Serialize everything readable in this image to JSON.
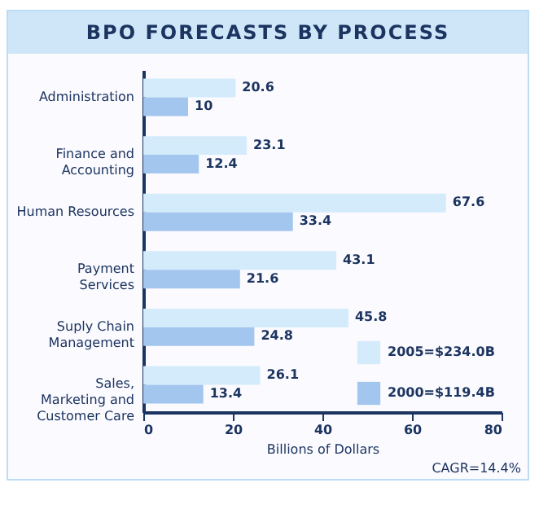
{
  "chart_data": {
    "type": "bar",
    "orientation": "horizontal",
    "title": "BPO FORECASTS BY PROCESS",
    "categories": [
      "Administration",
      "Finance and Accounting",
      "Human Resources",
      "Payment Services",
      "Suply Chain Management",
      "Sales, Marketing and Customer Care"
    ],
    "series": [
      {
        "name": "2005=$234.0B",
        "color": "#d4ebfc",
        "values": [
          20.6,
          23.1,
          67.6,
          43.1,
          45.8,
          26.1
        ]
      },
      {
        "name": "2000=$119.4B",
        "color": "#a3c6ee",
        "values": [
          10,
          12.4,
          33.4,
          21.6,
          24.8,
          13.4
        ]
      }
    ],
    "xlabel": "Billions of Dollars",
    "xlim": [
      0,
      80
    ],
    "xticks": [
      0,
      20,
      40,
      60,
      80
    ],
    "data_labels": true,
    "legend": "bottom right",
    "annotations": [
      "CAGR=14.4%"
    ]
  }
}
